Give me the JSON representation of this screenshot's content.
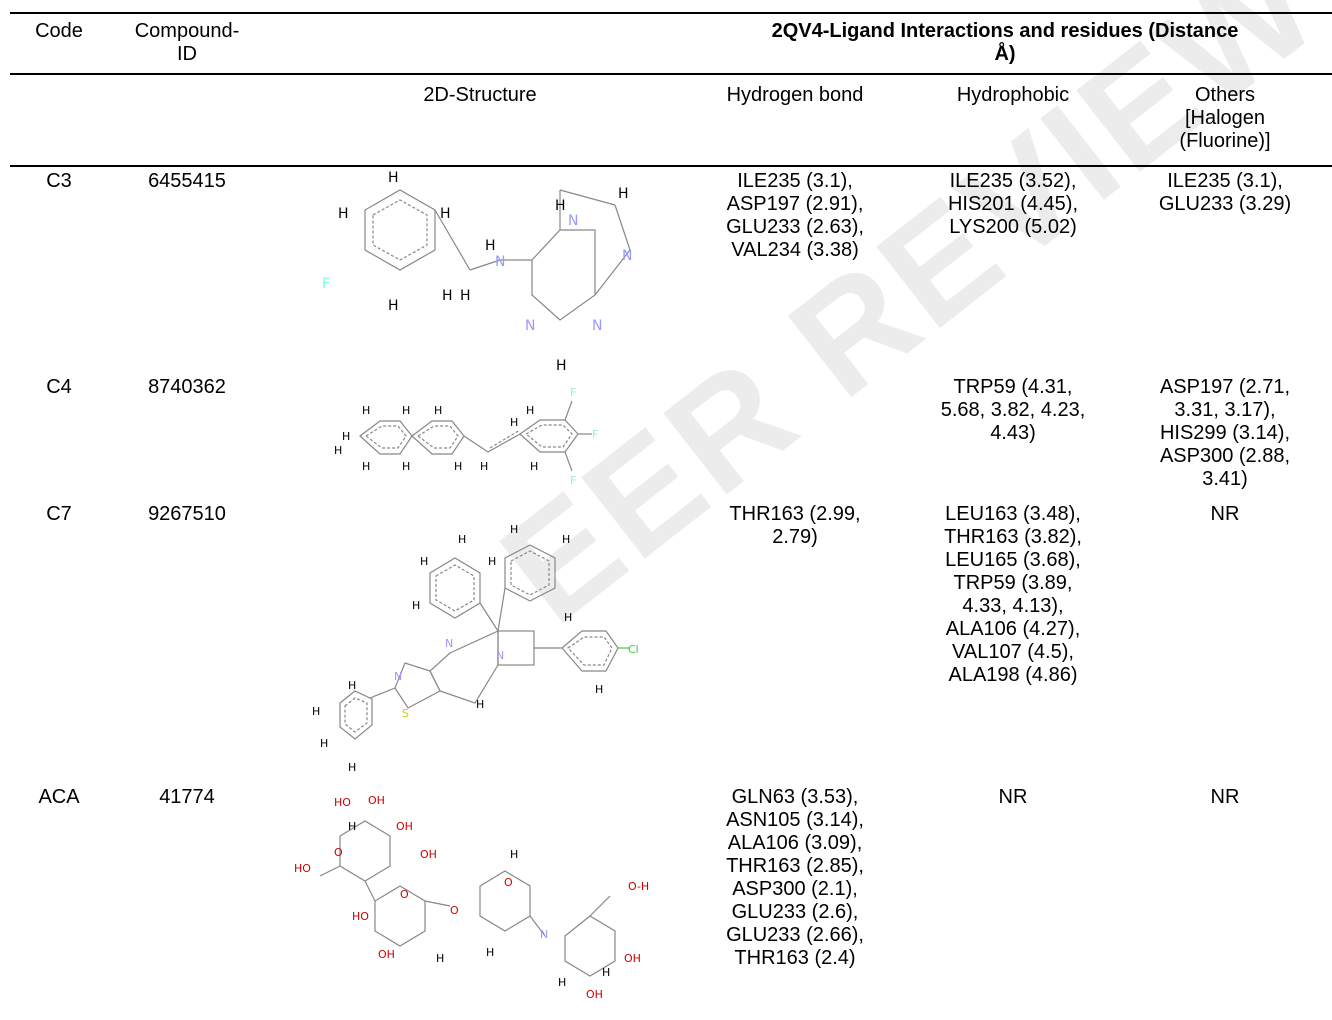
{
  "watermark": "EER REVIEW",
  "table": {
    "header": {
      "code": "Code",
      "compound_id": "Compound-\nID",
      "group_title": "2QV4-Ligand Interactions and residues (Distance\nÅ)",
      "structure": "2D-Structure",
      "hbond": "Hydrogen bond",
      "hydrophobic": "Hydrophobic",
      "others": "Others\n[Halogen\n(Fluorine)]"
    },
    "rows": [
      {
        "code": "C3",
        "compound_id": "6455415",
        "hbond": "ILE235 (3.1),\nASP197 (2.91),\nGLU233 (2.63),\nVAL234 (3.38)",
        "hydrophobic": "ILE235 (3.52),\nHIS201 (4.45),\nLYS200 (5.02)",
        "others": "ILE235 (3.1),\nGLU233 (3.29)",
        "atoms": [
          "H",
          "H",
          "H",
          "F",
          "H",
          "H",
          "H",
          "H",
          "H",
          "N",
          "N",
          "H",
          "N",
          "N",
          "N",
          "H"
        ]
      },
      {
        "code": "C4",
        "compound_id": "8740362",
        "hbond": "",
        "hydrophobic": "TRP59 (4.31,\n5.68, 3.82, 4.23,\n4.43)",
        "others": "ASP197 (2.71,\n3.31, 3.17),\nHIS299 (3.14),\nASP300 (2.88,\n3.41)",
        "atoms": [
          "H",
          "H",
          "H",
          "H",
          "H",
          "H",
          "H",
          "H",
          "H",
          "F",
          "F",
          "F",
          "H",
          "H",
          "H"
        ]
      },
      {
        "code": "C7",
        "compound_id": "9267510",
        "hbond": "THR163 (2.99,\n2.79)",
        "hydrophobic": "LEU163 (3.48),\nTHR163 (3.82),\nLEU165 (3.68),\nTRP59 (3.89,\n4.33, 4.13),\nALA106 (4.27),\nVAL107 (4.5),\nALA198 (4.86)",
        "others": "NR",
        "atoms": [
          "H",
          "H",
          "H",
          "H",
          "H",
          "H",
          "N",
          "N",
          "N",
          "S",
          "Cl",
          "H",
          "H",
          "H",
          "H",
          "H",
          "H",
          "H"
        ]
      },
      {
        "code": "ACA",
        "compound_id": "41774",
        "hbond": "GLN63 (3.53),\nASN105 (3.14),\nALA106 (3.09),\nTHR163 (2.85),\nASP300 (2.1),\nGLU233 (2.6),\nGLU233 (2.66),\nTHR163 (2.4)",
        "hydrophobic": "NR",
        "others": "NR",
        "atoms": [
          "HO",
          "OH",
          "OH",
          "H",
          "HO",
          "O",
          "O",
          "OH",
          "HO",
          "O",
          "OH",
          "O",
          "N",
          "H",
          "O-H",
          "OH",
          "OH",
          "H",
          "H",
          "H",
          "H"
        ]
      }
    ]
  }
}
